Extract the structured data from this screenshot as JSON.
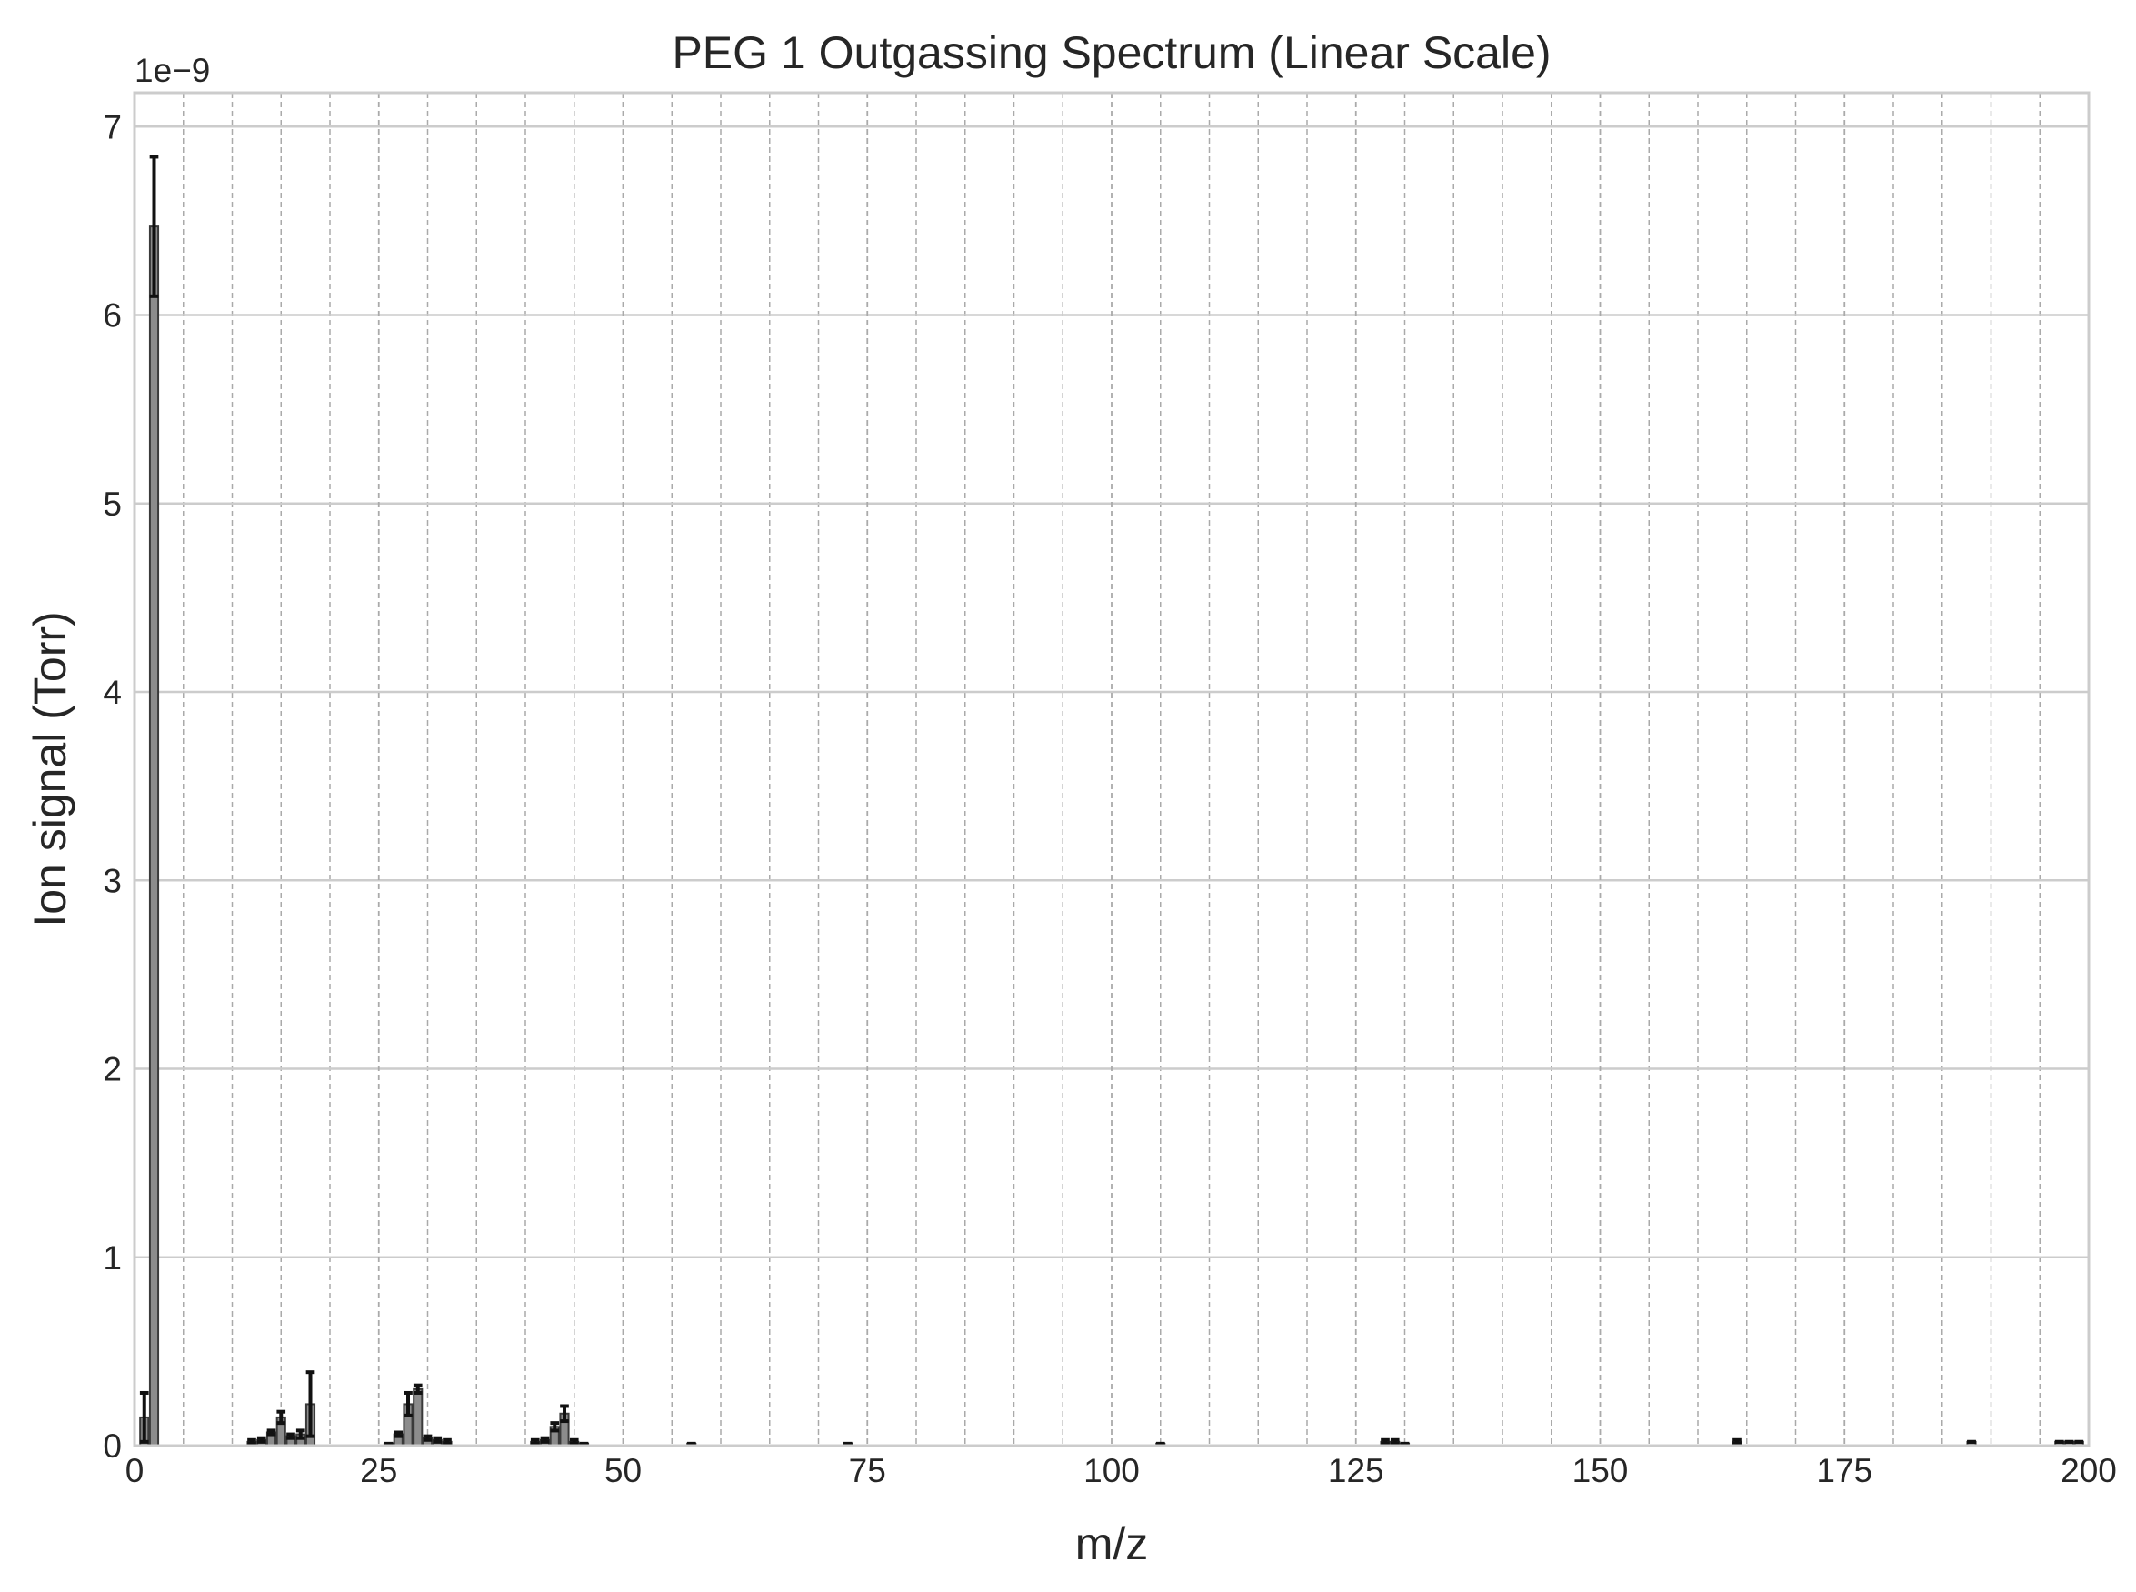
{
  "chart_data": {
    "type": "bar",
    "title": "PEG 1 Outgassing Spectrum (Linear Scale)",
    "xlabel": "m/z",
    "ylabel": "Ion signal (Torr)",
    "y_offset_label": "1e−9",
    "y_scale_multiplier": 1e-09,
    "xlim": [
      0,
      200
    ],
    "ylim": [
      0,
      7.18
    ],
    "x_ticks": [
      0,
      25,
      50,
      75,
      100,
      125,
      150,
      175,
      200
    ],
    "x_tick_labels": [
      "0",
      "25",
      "50",
      "75",
      "100",
      "125",
      "150",
      "175",
      "200"
    ],
    "y_ticks": [
      0,
      1,
      2,
      3,
      4,
      5,
      6,
      7
    ],
    "y_tick_labels": [
      "0",
      "1",
      "2",
      "3",
      "4",
      "5",
      "6",
      "7"
    ],
    "grid": true,
    "minor_grid_x": true,
    "legend": "none",
    "colors": {
      "bar_fill": "#8c8c8c",
      "bar_edge": "#3a3a3a",
      "error_bar": "#111111",
      "major_grid": "#cccccc",
      "minor_grid": "#aaaaaa",
      "frame": "#cccccc"
    },
    "series": [
      {
        "x": [
          1,
          2,
          12,
          13,
          14,
          15,
          16,
          17,
          18,
          26,
          27,
          28,
          29,
          30,
          31,
          32,
          41,
          42,
          43,
          44,
          45,
          46,
          57,
          73,
          105,
          128,
          129,
          130,
          164,
          188,
          197,
          198,
          199
        ],
        "values": [
          0.15,
          6.47,
          0.02,
          0.03,
          0.07,
          0.15,
          0.05,
          0.06,
          0.22,
          0.01,
          0.06,
          0.22,
          0.3,
          0.04,
          0.03,
          0.02,
          0.02,
          0.03,
          0.1,
          0.17,
          0.02,
          0.01,
          0.01,
          0.01,
          0.01,
          0.02,
          0.02,
          0.01,
          0.02,
          0.02,
          0.02,
          0.02,
          0.02
        ],
        "errors": [
          0.13,
          0.37,
          0.01,
          0.01,
          0.01,
          0.03,
          0.01,
          0.02,
          0.17,
          0.0,
          0.01,
          0.06,
          0.02,
          0.01,
          0.01,
          0.01,
          0.01,
          0.01,
          0.02,
          0.04,
          0.01,
          0.0,
          0.0,
          0.0,
          0.0,
          0.01,
          0.01,
          0.0,
          0.01,
          0.0,
          0.0,
          0.0,
          0.0
        ]
      }
    ]
  }
}
